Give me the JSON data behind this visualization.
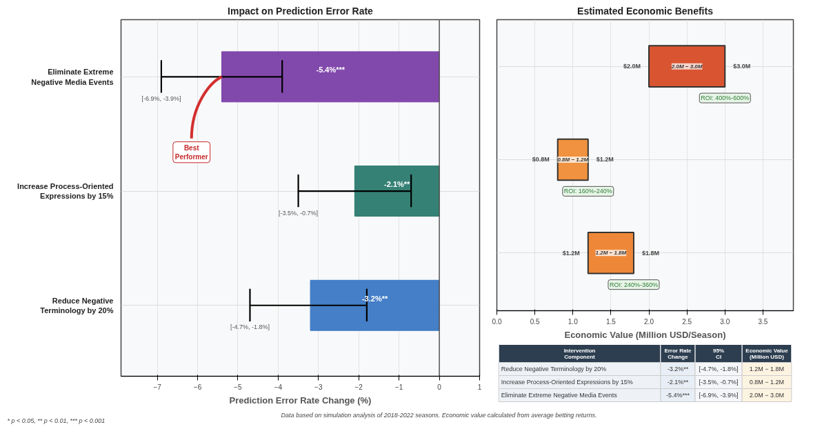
{
  "chart_data": [
    {
      "type": "bar",
      "orientation": "horizontal",
      "title": "Impact on Prediction Error Rate",
      "xlabel": "Prediction Error Rate Change (%)",
      "categories": [
        "Eliminate Extreme Negative Media Events",
        "Increase Process-Oriented Expressions by 15%",
        "Reduce Negative Terminology by 20%"
      ],
      "values": [
        -5.4,
        -2.1,
        -3.2
      ],
      "colors": [
        "#7b3fa8",
        "#2b7a6e",
        "#3a78c4"
      ],
      "errors": [
        [
          -6.9,
          -3.9
        ],
        [
          -3.5,
          -0.7
        ],
        [
          -4.7,
          -1.8
        ]
      ],
      "value_labels": [
        "-5.4%***",
        "-2.1%**",
        "-3.2%**"
      ],
      "xlim": [
        -7.9,
        1
      ],
      "xticks": [
        {
          "value": -7,
          "label": "−7"
        },
        {
          "value": -6,
          "label": "−6"
        },
        {
          "value": -5,
          "label": "−5"
        },
        {
          "value": -4,
          "label": "−4"
        },
        {
          "value": -3,
          "label": "−3"
        },
        {
          "value": -2,
          "label": "−2"
        },
        {
          "value": -1,
          "label": "−1"
        },
        0,
        1
      ],
      "grid": true,
      "ref_lines": [
        {
          "axis": "x",
          "value": 0,
          "color": "#555555"
        }
      ],
      "annotations": [
        {
          "text": "[-6.9%, -3.9%]",
          "x": -6.9,
          "y": "Eliminate Extreme Negative Media Events"
        },
        {
          "text": "[-3.5%, -0.7%]",
          "x": -3.5,
          "y": "Increase Process-Oriented Expressions by 15%"
        },
        {
          "text": "[-4.7%, -1.8%]",
          "x": -4.7,
          "y": "Reduce Negative Terminology by 20%"
        },
        {
          "text": "Best Performer",
          "x": -5.4,
          "y": "Eliminate Extreme Negative Media Events"
        },
        "* p < 0.05, ** p < 0.01, *** p < 0.001",
        "Data based on simulation analysis of 2018-2022 seasons. Economic value calculated from average betting returns."
      ]
    },
    {
      "type": "bar",
      "orientation": "horizontal",
      "title": "Estimated Economic Benefits",
      "xlabel": "Economic Value (Million USD/Season)",
      "categories": [
        null,
        null,
        null
      ],
      "base": [
        2.0,
        0.8,
        1.2
      ],
      "values": [
        1.0,
        0.4,
        0.6
      ],
      "colors": [
        "#d95430",
        "#f0923f",
        "#ee8838"
      ],
      "xlim": [
        0,
        3.9
      ],
      "xticks": [
        {
          "value": 0,
          "label": "0.0"
        },
        {
          "value": 0.5,
          "label": "0.5"
        },
        {
          "value": 1,
          "label": "1.0"
        },
        {
          "value": 1.5,
          "label": "1.5"
        },
        {
          "value": 2,
          "label": "2.0"
        },
        {
          "value": 2.5,
          "label": "2.5"
        },
        {
          "value": 3,
          "label": "3.0"
        },
        {
          "value": 3.5,
          "label": "3.5"
        }
      ],
      "grid": true,
      "tick_labels": "x",
      "annotations": [
        "$2.0M",
        "$3.0M",
        "ROI: 400%-600%",
        "2.0M − 3.0M",
        "$0.8M",
        "$1.2M",
        "ROI: 160%-240%",
        "0.8M − 1.2M",
        "$1.2M",
        "$1.8M",
        "ROI: 240%-360%",
        "1.2M − 1.8M"
      ]
    },
    {
      "type": "other",
      "categories": [
        "Intervention Component",
        "Error Rate Change",
        "95% CI",
        "Economic Value (Million USD)"
      ],
      "annotations": [
        "Reduce Negative Terminology by 20%",
        "-3.2%**",
        "[-4.7%, -1.8%]",
        "1.2M − 1.8M",
        "Increase Process-Oriented Expressions by 15%",
        "-2.1%**",
        "[-3.5%, -0.7%]",
        "0.8M − 1.2M",
        "Eliminate Extreme Negative Media Events",
        "-5.4%***",
        "[-6.9%, -3.9%]",
        "2.0M − 3.0M"
      ]
    }
  ]
}
